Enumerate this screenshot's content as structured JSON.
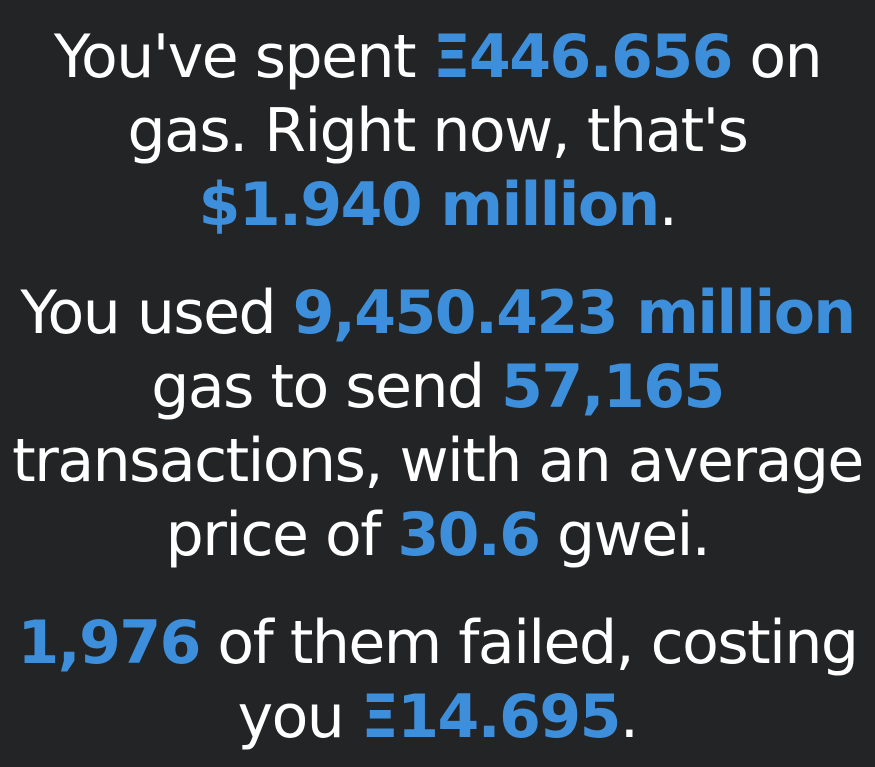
{
  "accent_color": "#3d8fdb",
  "background_color": "#232425",
  "text_color": "#ffffff",
  "paragraphs": [
    {
      "t1": "You've spent ",
      "eth_spent": "Ξ446.656",
      "t2": " on gas. Right now, that's ",
      "usd_value": "$1.940 million",
      "t3": "."
    },
    {
      "t1": "You used ",
      "gas_used": "9,450.423 million",
      "t2": " gas to send ",
      "tx_count": "57,165",
      "t3": " transactions, with an average price of ",
      "avg_price": "30.6",
      "t4": " gwei."
    },
    {
      "failed_count": "1,976",
      "t1": " of them failed, costing you ",
      "failed_cost": "Ξ14.695",
      "t2": "."
    }
  ]
}
